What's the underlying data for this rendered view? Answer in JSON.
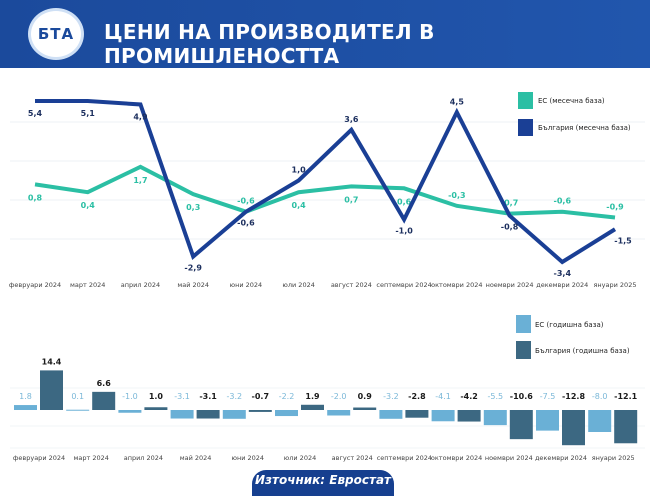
{
  "header": {
    "title": "ЦЕНИ НА ПРОИЗВОДИТЕЛ В ПРОМИШЛЕНОСТТА",
    "logo_text": "БТА"
  },
  "footer": {
    "source": "Източник: Евростат"
  },
  "colors": {
    "header": "#1b4a9c",
    "eu_monthly": "#2bbfa4",
    "bg_monthly": "#1a3f95",
    "eu_annual": "#6ab0d6",
    "bg_annual": "#3c6882"
  },
  "chart_data": [
    {
      "type": "line",
      "categories": [
        "февруари 2024",
        "март 2024",
        "април 2024",
        "май 2024",
        "юни 2024",
        "юли 2024",
        "август 2024",
        "септември 2024",
        "октомври 2024",
        "ноември 2024",
        "декември 2024",
        "януари 2025"
      ],
      "series": [
        {
          "name": "ЕС (месечна база)",
          "values": [
            0.8,
            0.4,
            1.7,
            0.3,
            -0.6,
            0.4,
            0.7,
            0.6,
            -0.3,
            -0.7,
            -0.6,
            -0.9
          ],
          "labels": [
            "0,8",
            "0,4",
            "1,7",
            "0,3",
            "-0,6",
            "0,4",
            "0,7",
            "0,6",
            "-0,3",
            "-0,7",
            "-0,6",
            "-0,9"
          ]
        },
        {
          "name": "България (месечна база)",
          "values": [
            5.4,
            5.1,
            4.9,
            -2.9,
            -0.6,
            1.0,
            3.6,
            -1.0,
            4.5,
            -0.8,
            -3.4,
            -1.5
          ],
          "labels": [
            "5,4",
            "5,1",
            "4,9",
            "-2,9",
            "-0,6",
            "1,0",
            "3,6",
            "-1,0",
            "4,5",
            "-0,8",
            "-3,4",
            "-1,5"
          ]
        }
      ],
      "legend": "top-right",
      "grid": true
    },
    {
      "type": "bar",
      "categories": [
        "февруари 2024",
        "март 2024",
        "април 2024",
        "май 2024",
        "юни 2024",
        "юли 2024",
        "август 2024",
        "септември 2024",
        "октомври 2024",
        "ноември 2024",
        "декември 2024",
        "януари 2025"
      ],
      "series": [
        {
          "name": "ЕС (годишна база)",
          "values": [
            1.8,
            0.1,
            -1.0,
            -3.1,
            -3.2,
            -2.2,
            -2.0,
            -3.2,
            -4.1,
            -5.5,
            -7.5,
            -8.0
          ],
          "labels": [
            "1.8",
            "0.1",
            "-1.0",
            "-3.1",
            "-3.2",
            "-2.2",
            "-2.0",
            "-3.2",
            "-4.1",
            "-5.5",
            "-7.5",
            "-8.0"
          ]
        },
        {
          "name": "България (годишна база)",
          "values": [
            14.4,
            6.6,
            1.0,
            -3.1,
            -0.7,
            1.9,
            0.9,
            -2.8,
            -4.2,
            -10.6,
            -12.8,
            -12.1
          ],
          "labels": [
            "14.4",
            "6.6",
            "1.0",
            "-3.1",
            "-0.7",
            "1.9",
            "0.9",
            "-2.8",
            "-4.2",
            "-10.6",
            "-12.8",
            "-12.1"
          ]
        }
      ],
      "legend": "top-right",
      "grid": true
    }
  ]
}
